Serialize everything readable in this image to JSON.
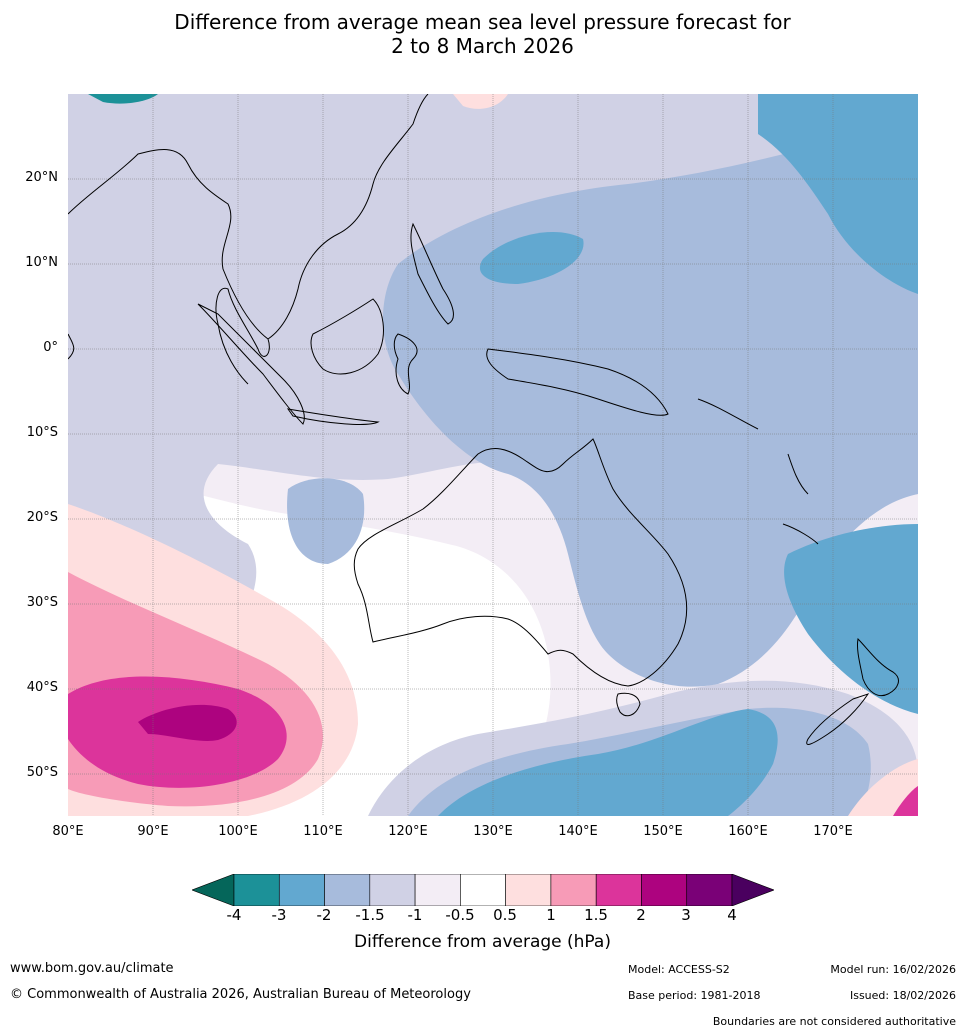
{
  "title": {
    "line1": "Difference from average mean sea level pressure forecast for",
    "line2": "2 to 8 March 2026"
  },
  "map": {
    "lat_labels": [
      "20°N",
      "10°N",
      "0°",
      "10°S",
      "20°S",
      "30°S",
      "40°S",
      "50°S"
    ],
    "lon_labels": [
      "80°E",
      "90°E",
      "100°E",
      "110°E",
      "120°E",
      "130°E",
      "140°E",
      "150°E",
      "160°E",
      "170°E"
    ]
  },
  "colorbar": {
    "title": "Difference from average (hPa)",
    "ticks": [
      "-4",
      "-3",
      "-2",
      "-1.5",
      "-1",
      "-0.5",
      "0.5",
      "1",
      "1.5",
      "2",
      "3",
      "4"
    ],
    "colors": [
      "#05665a",
      "#1c9198",
      "#62a8d0",
      "#a7bbdc",
      "#d0d1e5",
      "#f3edf5",
      "#ffffff",
      "#fedfdf",
      "#f79bb7",
      "#dc349b",
      "#ad037f",
      "#7a0177",
      "#4a005f"
    ]
  },
  "footer": {
    "website": "www.bom.gov.au/climate",
    "copyright": "© Commonwealth of Australia 2026, Australian Bureau of Meteorology",
    "model": "Model: ACCESS-S2",
    "base_period": "Base period: 1981-2018",
    "model_run": "Model run: 16/02/2026",
    "issued": "Issued: 18/02/2026",
    "disclaimer": "Boundaries are not considered authoritative"
  }
}
